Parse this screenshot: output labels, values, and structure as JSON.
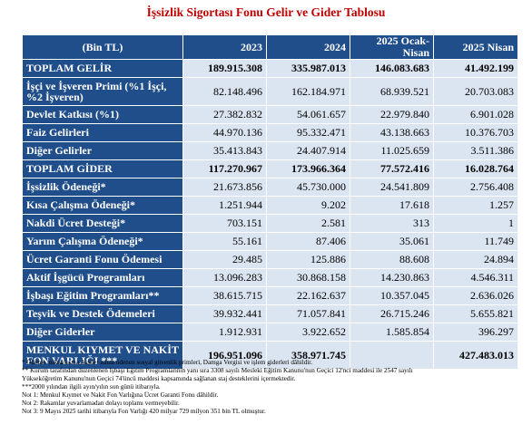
{
  "title": "İşsizlik Sigortası Fonu Gelir ve Gider Tablosu",
  "header": {
    "col0": "(Bin TL)",
    "col1": "2023",
    "col2": "2024",
    "col3": "2025 Ocak-Nisan",
    "col4": "2025 Nisan"
  },
  "rows": [
    {
      "label": "TOPLAM GELİR",
      "v2023": "189.915.308",
      "v2024": "335.987.013",
      "v2025on": "146.083.683",
      "v2025n": "41.492.199"
    },
    {
      "label": "İşçi ve İşveren Primi (%1 İşçi, %2 İşveren)",
      "v2023": "82.148.496",
      "v2024": "162.184.971",
      "v2025on": "68.939.521",
      "v2025n": "20.703.083"
    },
    {
      "label": "Devlet Katkısı (%1)",
      "v2023": "27.382.832",
      "v2024": "54.061.657",
      "v2025on": "22.979.840",
      "v2025n": "6.901.028"
    },
    {
      "label": "Faiz Gelirleri",
      "v2023": "44.970.136",
      "v2024": "95.332.471",
      "v2025on": "43.138.663",
      "v2025n": "10.376.703"
    },
    {
      "label": "Diğer Gelirler",
      "v2023": "35.413.843",
      "v2024": "24.407.914",
      "v2025on": "11.025.659",
      "v2025n": "3.511.386"
    },
    {
      "label": "TOPLAM GİDER",
      "v2023": "117.270.967",
      "v2024": "173.966.364",
      "v2025on": "77.572.416",
      "v2025n": "16.028.764"
    },
    {
      "label": "İşsizlik Ödeneği*",
      "v2023": "21.673.856",
      "v2024": "45.730.000",
      "v2025on": "24.541.809",
      "v2025n": "2.756.408"
    },
    {
      "label": "Kısa Çalışma Ödeneği*",
      "v2023": "1.251.944",
      "v2024": "9.202",
      "v2025on": "17.618",
      "v2025n": "1.257"
    },
    {
      "label": "Nakdi Ücret Desteği*",
      "v2023": "703.151",
      "v2024": "2.581",
      "v2025on": "313",
      "v2025n": "1"
    },
    {
      "label": "Yarım Çalışma Ödeneği*",
      "v2023": "55.161",
      "v2024": "87.406",
      "v2025on": "35.061",
      "v2025n": "11.749"
    },
    {
      "label": "Ücret Garanti Fonu Ödemesi",
      "v2023": "29.485",
      "v2024": "125.886",
      "v2025on": "88.608",
      "v2025n": "24.894"
    },
    {
      "label": "Aktif İşgücü Programları",
      "v2023": "13.096.283",
      "v2024": "30.868.158",
      "v2025on": "14.230.863",
      "v2025n": "4.546.311"
    },
    {
      "label": "İşbaşı Eğitim Programları**",
      "v2023": "38.615.715",
      "v2024": "22.162.637",
      "v2025on": "10.357.045",
      "v2025n": "2.636.026"
    },
    {
      "label": "Teşvik ve Destek Ödemeleri",
      "v2023": "39.932.441",
      "v2024": "71.057.841",
      "v2025on": "26.715.246",
      "v2025n": "5.655.821"
    },
    {
      "label": "Diğer Giderler",
      "v2023": "1.912.931",
      "v2024": "3.922.652",
      "v2025on": "1.585.854",
      "v2025n": "396.297"
    },
    {
      "label": "MENKUL KIYMET VE NAKİT FON VARLIĞI ***",
      "v2023": "196.951.096",
      "v2024": "358.971.745",
      "v2025on": "",
      "v2025n": "427.483.013"
    }
  ],
  "notes": [
    "* Ödeme miktarlarına, kişiler adına ödenen sosyal güvenlik primleri, Damga Vergisi ve işlem giderleri dâhildir.",
    "** Kurum tarafından düzenlenen İşbaşı Eğitim Programlarının yanı sıra 3308 sayılı Mesleki Eğitim Kanunu'nun Geçici 12'nci maddesi ile 2547 sayılı",
    "Yükseköğretim Kanunu'nun Geçici 74'üncü maddesi kapsamında sağlanan staj desteklerini içermektedir.",
    "***2000 yılından ilgili ayın/yılın son günü itibarıyla.",
    "Not 1: Menkul Kıymet ve Nakit Fon Varlığına Ücret Garanti Fonu dâhildir.",
    "Not 2: Rakamlar yuvarlamadan dolayı toplamı vermeyebilir.",
    "Not 3: 9 Mayıs 2025 tarihi itibarıyla Fon Varlığı 420 milyar 729 milyon 351 bin TL olmuştur."
  ]
}
